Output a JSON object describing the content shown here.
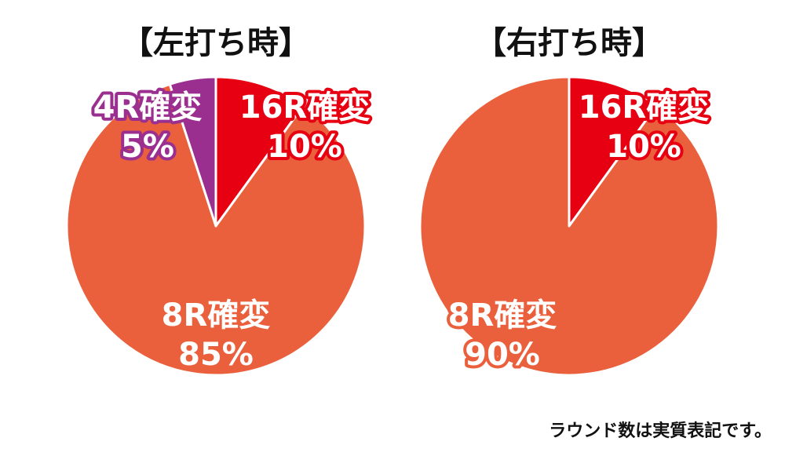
{
  "chart_data": [
    {
      "type": "pie",
      "title": "【左打ち時】",
      "categories": [
        "16R確変",
        "8R確変",
        "4R確変"
      ],
      "values": [
        10,
        85,
        5
      ],
      "value_labels": [
        "10%",
        "85%",
        "5%"
      ],
      "colors": [
        "#e60012",
        "#eb603c",
        "#9b2f8f"
      ],
      "legend": "none"
    },
    {
      "type": "pie",
      "title": "【右打ち時】",
      "categories": [
        "16R確変",
        "8R確変"
      ],
      "values": [
        10,
        90
      ],
      "value_labels": [
        "10%",
        "90%"
      ],
      "colors": [
        "#e60012",
        "#eb603c"
      ],
      "legend": "none"
    }
  ],
  "footnote": "ラウンド数は実質表記です。"
}
